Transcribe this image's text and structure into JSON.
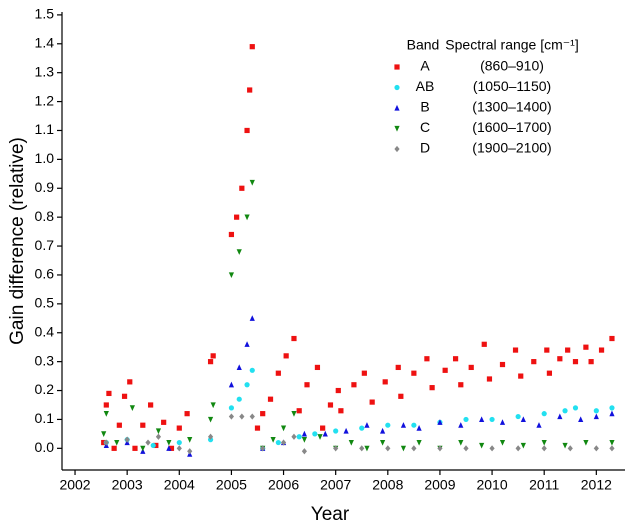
{
  "chart_data": {
    "type": "scatter",
    "xlabel": "Year",
    "ylabel": "Gain difference (relative)",
    "xlim": [
      2001.75,
      2012.55
    ],
    "ylim": [
      -0.075,
      1.51
    ],
    "xticks": [
      2002,
      2003,
      2004,
      2005,
      2006,
      2007,
      2008,
      2009,
      2010,
      2011,
      2012
    ],
    "yticks": [
      {
        "value": 0,
        "label": "0.0"
      },
      0.1,
      0.2,
      0.3,
      0.4,
      0.5,
      0.6,
      0.7,
      0.8,
      0.9,
      {
        "value": 1,
        "label": "1.0"
      },
      1.1,
      1.2,
      1.3,
      1.4,
      1.5
    ],
    "legend_band_header": "Band",
    "legend_range_header": "Spectral range [cm⁻¹]",
    "series": [
      {
        "name": "A",
        "range": "(860–910)",
        "color": "#ee1111",
        "marker": "square",
        "x": [
          2002.55,
          2002.6,
          2002.65,
          2002.75,
          2002.85,
          2002.95,
          2003.05,
          2003.15,
          2003.3,
          2003.45,
          2003.55,
          2003.7,
          2003.85,
          2004.0,
          2004.15,
          2004.6,
          2004.65,
          2005.0,
          2005.1,
          2005.2,
          2005.3,
          2005.35,
          2005.4,
          2005.5,
          2005.6,
          2005.75,
          2005.9,
          2006.05,
          2006.2,
          2006.3,
          2006.45,
          2006.65,
          2006.75,
          2006.9,
          2007.05,
          2007.1,
          2007.35,
          2007.55,
          2007.7,
          2007.95,
          2008.2,
          2008.25,
          2008.5,
          2008.75,
          2008.85,
          2009.1,
          2009.3,
          2009.4,
          2009.6,
          2009.85,
          2009.95,
          2010.2,
          2010.45,
          2010.55,
          2010.8,
          2011.05,
          2011.1,
          2011.3,
          2011.45,
          2011.6,
          2011.8,
          2011.9,
          2012.1,
          2012.3
        ],
        "values": [
          0.02,
          0.15,
          0.19,
          0.0,
          0.08,
          0.18,
          0.23,
          0.0,
          0.08,
          0.15,
          0.01,
          0.09,
          0.0,
          0.07,
          0.12,
          0.3,
          0.32,
          0.74,
          0.8,
          0.9,
          1.1,
          1.24,
          1.39,
          0.07,
          0.12,
          0.17,
          0.26,
          0.32,
          0.38,
          0.13,
          0.22,
          0.28,
          0.07,
          0.15,
          0.2,
          0.13,
          0.22,
          0.26,
          0.16,
          0.23,
          0.28,
          0.18,
          0.26,
          0.31,
          0.21,
          0.27,
          0.31,
          0.22,
          0.28,
          0.36,
          0.24,
          0.29,
          0.34,
          0.25,
          0.3,
          0.34,
          0.26,
          0.31,
          0.34,
          0.3,
          0.35,
          0.3,
          0.34,
          0.38
        ]
      },
      {
        "name": "AB",
        "range": "(1050–1150)",
        "color": "#22e0f0",
        "marker": "circle",
        "x": [
          2002.6,
          2003.0,
          2003.5,
          2004.0,
          2004.6,
          2005.0,
          2005.15,
          2005.3,
          2005.4,
          2005.6,
          2005.9,
          2006.3,
          2006.6,
          2007.0,
          2007.5,
          2008.0,
          2008.5,
          2009.0,
          2009.5,
          2010.0,
          2010.5,
          2011.0,
          2011.4,
          2011.6,
          2012.0,
          2012.3
        ],
        "values": [
          0.02,
          0.03,
          0.01,
          0.02,
          0.03,
          0.14,
          0.17,
          0.22,
          0.27,
          0.0,
          0.02,
          0.04,
          0.05,
          0.06,
          0.07,
          0.08,
          0.08,
          0.09,
          0.1,
          0.1,
          0.11,
          0.12,
          0.13,
          0.14,
          0.13,
          0.14
        ]
      },
      {
        "name": "B",
        "range": "(1300–1400)",
        "color": "#1111dd",
        "marker": "triangle-up",
        "x": [
          2002.6,
          2003.0,
          2003.3,
          2003.8,
          2004.2,
          2005.0,
          2005.15,
          2005.3,
          2005.4,
          2005.6,
          2006.0,
          2006.4,
          2006.8,
          2007.2,
          2007.6,
          2007.9,
          2008.3,
          2008.6,
          2009.0,
          2009.4,
          2009.8,
          2010.2,
          2010.6,
          2010.9,
          2011.3,
          2011.7,
          2012.0,
          2012.3
        ],
        "values": [
          0.01,
          0.02,
          -0.01,
          0.0,
          -0.02,
          0.22,
          0.28,
          0.36,
          0.45,
          0.0,
          0.02,
          0.05,
          0.05,
          0.06,
          0.08,
          0.06,
          0.08,
          0.07,
          0.09,
          0.08,
          0.1,
          0.09,
          0.1,
          0.08,
          0.11,
          0.1,
          0.11,
          0.12
        ]
      },
      {
        "name": "C",
        "range": "(1600–1700)",
        "color": "#118811",
        "marker": "triangle-down",
        "x": [
          2002.55,
          2002.6,
          2002.8,
          2003.1,
          2003.3,
          2003.6,
          2003.8,
          2004.2,
          2004.6,
          2004.65,
          2005.0,
          2005.15,
          2005.3,
          2005.4,
          2005.6,
          2005.8,
          2006.0,
          2006.2,
          2006.4,
          2006.7,
          2007.0,
          2007.3,
          2007.6,
          2007.9,
          2008.3,
          2008.6,
          2009.0,
          2009.4,
          2009.8,
          2010.2,
          2010.6,
          2011.0,
          2011.4,
          2011.8,
          2012.3
        ],
        "values": [
          0.05,
          0.12,
          0.02,
          0.14,
          0.0,
          0.06,
          0.02,
          0.03,
          0.1,
          0.15,
          0.6,
          0.68,
          0.8,
          0.92,
          0.0,
          0.03,
          0.07,
          0.12,
          0.03,
          0.04,
          0.0,
          0.02,
          0.0,
          0.02,
          0.0,
          0.02,
          0.0,
          0.02,
          0.01,
          0.02,
          0.01,
          0.02,
          0.01,
          0.02,
          0.02
        ]
      },
      {
        "name": "D",
        "range": "(1900–2100)",
        "color": "#888888",
        "marker": "diamond",
        "x": [
          2002.6,
          2003.0,
          2003.4,
          2003.6,
          2004.0,
          2004.2,
          2004.6,
          2005.0,
          2005.2,
          2005.4,
          2005.6,
          2006.0,
          2006.2,
          2006.4,
          2007.0,
          2007.5,
          2008.0,
          2008.5,
          2009.0,
          2009.5,
          2010.0,
          2010.5,
          2011.0,
          2011.5,
          2012.0,
          2012.3
        ],
        "values": [
          0.02,
          0.03,
          0.02,
          0.04,
          0.0,
          -0.01,
          0.04,
          0.11,
          0.11,
          0.11,
          0.0,
          0.02,
          0.04,
          -0.01,
          0.0,
          0.0,
          0.0,
          0.0,
          0.0,
          0.0,
          0.0,
          0.0,
          0.0,
          0.0,
          0.0,
          0.0
        ]
      }
    ]
  }
}
